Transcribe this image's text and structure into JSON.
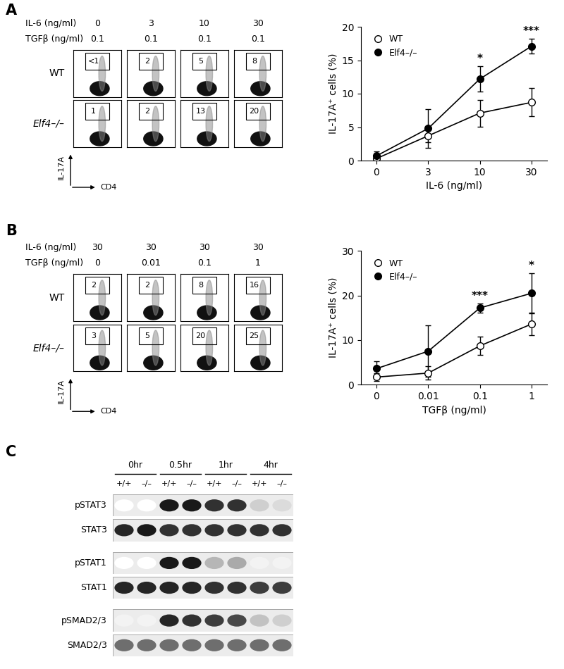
{
  "panel_labels": [
    "A",
    "B",
    "C"
  ],
  "flow": [
    {
      "conditions": [
        {
          "name": "IL-6 (ng/ml)",
          "values": [
            0,
            3,
            10,
            30
          ]
        },
        {
          "name": "TGFβ (ng/ml)",
          "values": [
            0.1,
            0.1,
            0.1,
            0.1
          ]
        }
      ],
      "rows": [
        {
          "name": "WT",
          "gates": [
            "<1",
            "2",
            "5",
            "8"
          ]
        },
        {
          "name": "Elf4–/–",
          "gates": [
            "1",
            "2",
            "13",
            "20"
          ]
        }
      ],
      "y_label": "IL-17A",
      "x_label": "CD4"
    },
    {
      "conditions": [
        {
          "name": "IL-6 (ng/ml)",
          "values": [
            30,
            30,
            30,
            30
          ]
        },
        {
          "name": "TGFβ (ng/ml)",
          "values": [
            0,
            0.01,
            0.1,
            1
          ]
        }
      ],
      "rows": [
        {
          "name": "WT",
          "gates": [
            "2",
            "2",
            "8",
            "16"
          ]
        },
        {
          "name": "Elf4–/–",
          "gates": [
            "3",
            "5",
            "20",
            "25"
          ]
        }
      ],
      "y_label": "IL-17A",
      "x_label": "CD4"
    }
  ],
  "chart_data": [
    {
      "type": "line",
      "x_label": "IL-6 (ng/ml)",
      "y_label": "IL-17A⁺ cells (%)",
      "categories": [
        "0",
        "3",
        "10",
        "30"
      ],
      "ylim": [
        0,
        20
      ],
      "yticks": [
        0,
        5,
        10,
        15,
        20
      ],
      "legend": "upper left",
      "series": [
        {
          "name": "WT",
          "color": "#000000",
          "marker": "open_circle",
          "values": [
            0.3,
            3.7,
            7.1,
            8.7
          ],
          "errors": [
            0.3,
            1.0,
            2.0,
            2.1
          ]
        },
        {
          "name": "Elf4–/–",
          "color": "#000000",
          "marker": "circle",
          "values": [
            0.7,
            4.8,
            12.2,
            17.1
          ],
          "errors": [
            0.7,
            2.9,
            1.9,
            1.1
          ]
        }
      ],
      "annotations": [
        {
          "category": "10",
          "text": "*"
        },
        {
          "category": "30",
          "text": "***"
        }
      ]
    },
    {
      "type": "line",
      "x_label": "TGFβ (ng/ml)",
      "y_label": "IL-17A⁺ cells (%)",
      "categories": [
        "0",
        "0.01",
        "0.1",
        "1"
      ],
      "ylim": [
        0,
        30
      ],
      "yticks": [
        0,
        10,
        20,
        30
      ],
      "legend": "upper left",
      "series": [
        {
          "name": "WT",
          "color": "#000000",
          "marker": "open_circle",
          "values": [
            1.7,
            2.6,
            8.7,
            13.6
          ],
          "errors": [
            0.8,
            1.5,
            2.0,
            2.5
          ]
        },
        {
          "name": "Elf4–/–",
          "color": "#000000",
          "marker": "circle",
          "values": [
            3.6,
            7.5,
            17.2,
            20.5
          ],
          "errors": [
            1.7,
            5.8,
            1.0,
            4.5
          ]
        }
      ],
      "annotations": [
        {
          "category": "0.1",
          "text": "***"
        },
        {
          "category": "1",
          "text": "*"
        }
      ]
    }
  ],
  "blot": {
    "timepoints": [
      "0hr",
      "0.5hr",
      "1hr",
      "4hr"
    ],
    "genotypes": [
      "+/+",
      "–/–"
    ],
    "groups": [
      [
        {
          "name": "pSTAT3",
          "intensity": [
            0,
            0,
            0.95,
            0.95,
            0.85,
            0.85,
            0.2,
            0.15
          ]
        },
        {
          "name": "STAT3",
          "intensity": [
            0.9,
            0.95,
            0.85,
            0.85,
            0.85,
            0.85,
            0.85,
            0.85
          ]
        }
      ],
      [
        {
          "name": "pSTAT1",
          "intensity": [
            0,
            0,
            0.95,
            0.95,
            0.3,
            0.35,
            0.05,
            0.05
          ]
        },
        {
          "name": "STAT1",
          "intensity": [
            0.9,
            0.9,
            0.9,
            0.9,
            0.85,
            0.85,
            0.8,
            0.8
          ]
        }
      ],
      [
        {
          "name": "pSMAD2/3",
          "intensity": [
            0.05,
            0.05,
            0.9,
            0.85,
            0.8,
            0.75,
            0.25,
            0.2
          ]
        },
        {
          "name": "SMAD2/3",
          "intensity": [
            0.6,
            0.6,
            0.6,
            0.6,
            0.6,
            0.6,
            0.6,
            0.6
          ]
        }
      ]
    ]
  }
}
